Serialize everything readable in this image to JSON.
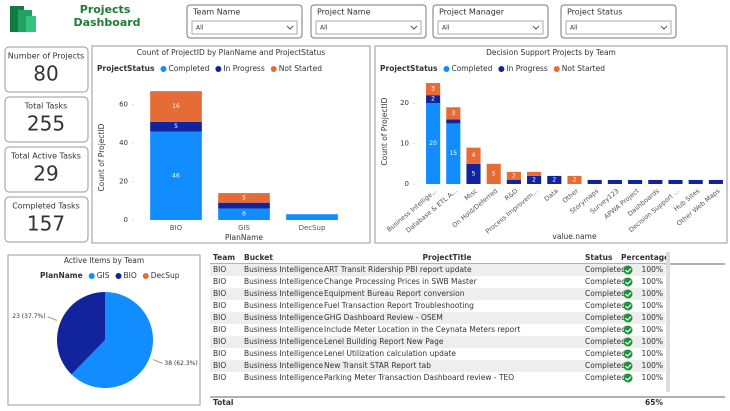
{
  "header": {
    "title": [
      "Projects",
      "Dashboard"
    ]
  },
  "filters": [
    {
      "label": "Team Name",
      "value": "All"
    },
    {
      "label": "Project Name",
      "value": "All"
    },
    {
      "label": "Project Manager",
      "value": "All"
    },
    {
      "label": "Project Status",
      "value": "All"
    }
  ],
  "cards": [
    {
      "label": "Number of Projects",
      "value": "80"
    },
    {
      "label": "Total Tasks",
      "value": "255"
    },
    {
      "label": "Total Active Tasks",
      "value": "29"
    },
    {
      "label": "Completed Tasks",
      "value": "157"
    }
  ],
  "chart_data": [
    {
      "type": "bar",
      "title": "Count of ProjectID by PlanName and ProjectStatus",
      "legend_title": "ProjectStatus",
      "x_label": "PlanName",
      "y_label": "Count of ProjectID",
      "stacked": true,
      "categories": [
        "BIO",
        "GIS",
        "DecSup"
      ],
      "series": [
        {
          "name": "Completed",
          "color": "#118DFF",
          "values": [
            46,
            6,
            3
          ]
        },
        {
          "name": "In Progress",
          "color": "#12239E",
          "values": [
            5,
            3,
            null
          ]
        },
        {
          "name": "Not Started",
          "color": "#E66C37",
          "values": [
            16,
            5,
            null
          ]
        }
      ],
      "ylim": [
        0,
        65
      ],
      "yticks": [
        0,
        20,
        40,
        60
      ]
    },
    {
      "type": "bar",
      "title": "Decision Support Projects by Team",
      "legend_title": "ProjectStatus",
      "x_label": "value.name",
      "y_label": "Count of ProjectID",
      "stacked": true,
      "categories": [
        "Business Intellige...",
        "Database & ETL A...",
        "Misc",
        "On Hold/Deferred",
        "R&D",
        "Process Improvem...",
        "Data",
        "Other",
        "Storymaps",
        "Survey123",
        "APWA Project",
        "Dashboards",
        "Decision Support ...",
        "Hub Sites",
        "Other Web Maps"
      ],
      "series": [
        {
          "name": "Completed",
          "color": "#118DFF",
          "values": [
            20,
            15,
            null,
            null,
            null,
            null,
            null,
            null,
            null,
            null,
            null,
            null,
            null,
            null,
            null
          ]
        },
        {
          "name": "In Progress",
          "color": "#12239E",
          "values": [
            2,
            1,
            5,
            null,
            1,
            2,
            2,
            null,
            1,
            1,
            1,
            1,
            1,
            1,
            1
          ]
        },
        {
          "name": "Not Started",
          "color": "#E66C37",
          "values": [
            3,
            3,
            4,
            5,
            2,
            1,
            null,
            2,
            null,
            null,
            null,
            null,
            null,
            null,
            null
          ]
        }
      ],
      "ylim": [
        0,
        26
      ],
      "yticks": [
        0,
        10,
        20
      ]
    },
    {
      "type": "pie",
      "title": "Active Items by Team",
      "legend_title": "PlanName",
      "categories": [
        "GIS",
        "BIO",
        "DecSup"
      ],
      "colors": [
        "#118DFF",
        "#12239E",
        "#E66C37"
      ],
      "values": [
        38,
        23,
        null
      ],
      "value_labels": [
        "38 (62.3%)",
        "23 (37.7%)",
        null
      ]
    }
  ],
  "table": {
    "columns": [
      "Team",
      "Bucket",
      "ProjectTitle",
      "Status",
      "Percentage"
    ],
    "rows": [
      [
        "BIO",
        "Business Intelligence",
        "ART Transit Ridership PBI report update",
        "Completed",
        "100%"
      ],
      [
        "BIO",
        "Business Intelligence",
        "Change Processing Prices in SWB Master",
        "Completed",
        "100%"
      ],
      [
        "BIO",
        "Business Intelligence",
        "Equipment Bureau Report conversion",
        "Completed",
        "100%"
      ],
      [
        "BIO",
        "Business Intelligence",
        "Fuel Transaction Report Troubleshooting",
        "Completed",
        "100%"
      ],
      [
        "BIO",
        "Business Intelligence",
        "GHG Dashboard Review - OSEM",
        "Completed",
        "100%"
      ],
      [
        "BIO",
        "Business Intelligence",
        "Include Meter Location in the Ceynata Meters report",
        "Completed",
        "100%"
      ],
      [
        "BIO",
        "Business Intelligence",
        "Lenel Building Report New Page",
        "Completed",
        "100%"
      ],
      [
        "BIO",
        "Business Intelligence",
        "Lenel Utilization calculation update",
        "Completed",
        "100%"
      ],
      [
        "BIO",
        "Business Intelligence",
        "New Transit STAR Report tab",
        "Completed",
        "100%"
      ],
      [
        "BIO",
        "Business Intelligence",
        "Parking Meter Transaction Dashboard review - TEO",
        "Completed",
        "100%"
      ]
    ],
    "total_label": "Total",
    "total_value": "65%"
  }
}
